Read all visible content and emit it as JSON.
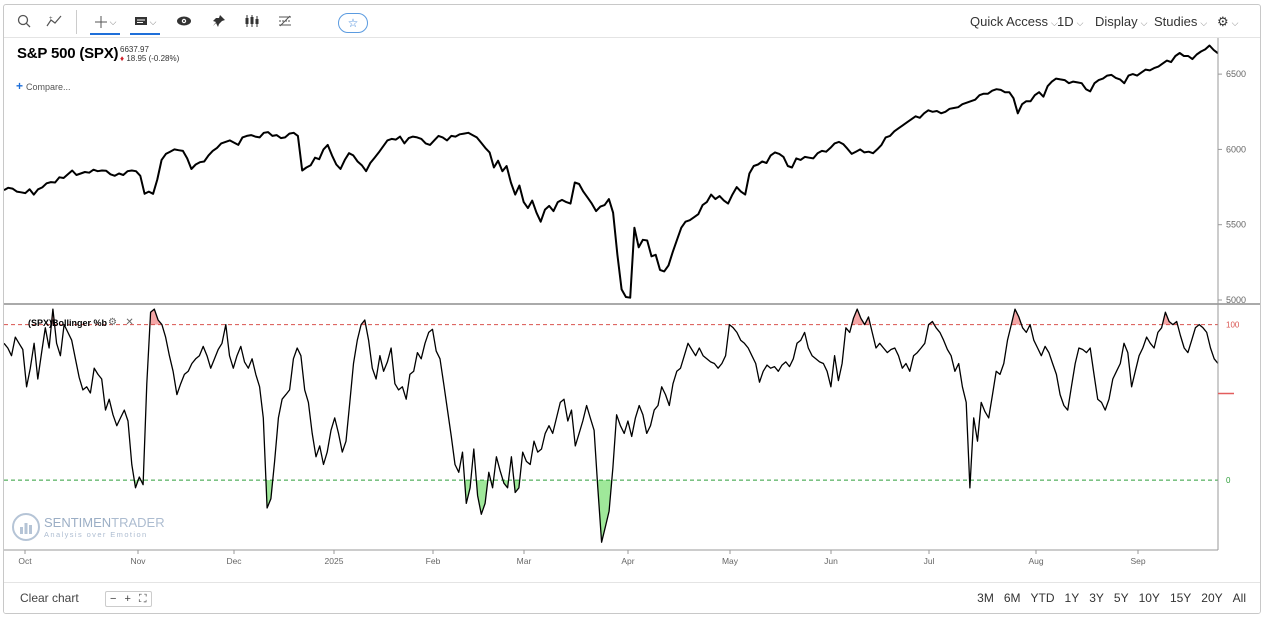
{
  "toolbar": {
    "quick_access": "Quick Access",
    "interval": "1D",
    "display": "Display",
    "studies": "Studies"
  },
  "header": {
    "title": "S&P 500 (SPX)",
    "price": "6637.97",
    "change": "18.95 (-0.28%)",
    "compare": "Compare..."
  },
  "indicator": {
    "label": "(SPX)Bollinger %b"
  },
  "watermark": {
    "brand_a": "SENTIMEN",
    "brand_b": "TRADER",
    "tagline": "Analysis over Emotion"
  },
  "bottom": {
    "clear_chart": "Clear chart",
    "ranges": [
      "3M",
      "6M",
      "YTD",
      "1Y",
      "3Y",
      "5Y",
      "10Y",
      "15Y",
      "20Y",
      "All"
    ]
  },
  "colors": {
    "price_line": "#000000",
    "upper_band": "#d9534f",
    "lower_band": "#2e9e3a",
    "upper_fill": "#f4a6a6",
    "lower_fill": "#9fe89a"
  },
  "chart_data": [
    {
      "type": "line",
      "title": "S&P 500 (SPX)",
      "x_ticks": [
        "Oct",
        "Nov",
        "Dec",
        "2025",
        "Feb",
        "Mar",
        "Apr",
        "May",
        "Jun",
        "Jul",
        "Aug",
        "Sep"
      ],
      "y_ticks": [
        5000,
        5500,
        6000,
        6500
      ],
      "ylim": [
        4980,
        6700
      ],
      "series": [
        {
          "name": "SPX",
          "values": [
            5730,
            5745,
            5740,
            5720,
            5715,
            5710,
            5735,
            5700,
            5735,
            5748,
            5775,
            5783,
            5780,
            5815,
            5810,
            5835,
            5860,
            5830,
            5840,
            5850,
            5845,
            5865,
            5855,
            5860,
            5858,
            5835,
            5825,
            5840,
            5830,
            5855,
            5860,
            5855,
            5825,
            5705,
            5720,
            5705,
            5800,
            5930,
            5970,
            5985,
            6000,
            5995,
            5990,
            5940,
            5870,
            5900,
            5915,
            5920,
            5960,
            5990,
            6010,
            6040,
            6050,
            6060,
            6045,
            6030,
            6080,
            6090,
            6095,
            6085,
            6080,
            6110,
            6115,
            6090,
            6095,
            6075,
            6080,
            6105,
            6110,
            6090,
            5860,
            5880,
            5895,
            5945,
            5935,
            6000,
            6030,
            5960,
            5900,
            5870,
            5930,
            5975,
            5960,
            5920,
            5895,
            5855,
            5910,
            5945,
            5980,
            6020,
            6060,
            6070,
            6065,
            6085,
            6040,
            6075,
            6085,
            6080,
            6070,
            6040,
            6030,
            6060,
            6090,
            6080,
            6060,
            6090,
            6085,
            6100,
            6105,
            6110,
            6095,
            6080,
            6045,
            6010,
            5980,
            5880,
            5925,
            5855,
            5890,
            5780,
            5700,
            5760,
            5650,
            5610,
            5660,
            5580,
            5520,
            5600,
            5625,
            5590,
            5650,
            5665,
            5650,
            5640,
            5780,
            5770,
            5720,
            5680,
            5640,
            5590,
            5620,
            5630,
            5670,
            5580,
            5300,
            5070,
            5020,
            5015,
            5480,
            5350,
            5400,
            5395,
            5290,
            5300,
            5200,
            5190,
            5230,
            5320,
            5400,
            5480,
            5520,
            5530,
            5550,
            5570,
            5630,
            5650,
            5700,
            5670,
            5690,
            5660,
            5640,
            5700,
            5750,
            5720,
            5700,
            5840,
            5890,
            5900,
            5920,
            5910,
            5960,
            5980,
            5970,
            5950,
            5890,
            5880,
            5940,
            5930,
            5950,
            5945,
            5940,
            5975,
            5990,
            5985,
            6010,
            6040,
            6050,
            6035,
            6005,
            5970,
            5985,
            6000,
            5980,
            5985,
            5975,
            6000,
            6030,
            6080,
            6090,
            6120,
            6140,
            6160,
            6180,
            6200,
            6220,
            6210,
            6240,
            6260,
            6250,
            6255,
            6240,
            6250,
            6270,
            6275,
            6280,
            6300,
            6310,
            6320,
            6330,
            6360,
            6370,
            6370,
            6390,
            6400,
            6395,
            6380,
            6380,
            6340,
            6240,
            6300,
            6320,
            6320,
            6360,
            6380,
            6350,
            6420,
            6450,
            6470,
            6465,
            6460,
            6440,
            6450,
            6445,
            6440,
            6400,
            6385,
            6440,
            6460,
            6470,
            6490,
            6495,
            6475,
            6465,
            6440,
            6490,
            6500,
            6490,
            6510,
            6530,
            6525,
            6540,
            6550,
            6570,
            6590,
            6580,
            6620,
            6640,
            6620,
            6620,
            6600,
            6630,
            6650,
            6664,
            6690,
            6660,
            6638
          ]
        }
      ]
    },
    {
      "type": "line",
      "title": "(SPX)Bollinger %b",
      "y_ticks": [
        0,
        100
      ],
      "ylim": [
        -45,
        112
      ],
      "series": [
        {
          "name": "(SPX)Bollinger %b",
          "values": [
            88,
            85,
            80,
            92,
            88,
            84,
            60,
            72,
            88,
            65,
            82,
            98,
            85,
            110,
            88,
            80,
            100,
            95,
            90,
            78,
            66,
            58,
            60,
            56,
            72,
            68,
            65,
            45,
            52,
            42,
            35,
            40,
            45,
            38,
            10,
            -5,
            2,
            -3,
            62,
            108,
            110,
            103,
            100,
            92,
            80,
            70,
            55,
            62,
            68,
            70,
            75,
            78,
            80,
            86,
            80,
            72,
            78,
            84,
            88,
            100,
            80,
            72,
            80,
            86,
            76,
            72,
            78,
            68,
            60,
            40,
            -18,
            -12,
            12,
            40,
            52,
            55,
            58,
            78,
            85,
            80,
            58,
            50,
            30,
            15,
            22,
            10,
            18,
            32,
            40,
            30,
            18,
            25,
            50,
            75,
            90,
            100,
            103,
            90,
            72,
            65,
            80,
            70,
            76,
            85,
            62,
            58,
            60,
            52,
            68,
            70,
            82,
            78,
            88,
            95,
            97,
            83,
            78,
            62,
            45,
            28,
            10,
            5,
            18,
            -15,
            -5,
            20,
            -10,
            -22,
            -15,
            5,
            -5,
            15,
            6,
            -2,
            -5,
            15,
            -8,
            -5,
            18,
            12,
            10,
            25,
            18,
            20,
            30,
            35,
            30,
            40,
            50,
            52,
            38,
            45,
            22,
            30,
            38,
            48,
            40,
            32,
            -5,
            -40,
            -30,
            -20,
            8,
            42,
            35,
            30,
            38,
            28,
            40,
            48,
            42,
            30,
            35,
            45,
            48,
            60,
            55,
            48,
            62,
            70,
            72,
            80,
            88,
            84,
            80,
            85,
            80,
            78,
            76,
            75,
            72,
            75,
            80,
            100,
            98,
            95,
            90,
            88,
            85,
            80,
            75,
            63,
            70,
            74,
            72,
            73,
            70,
            74,
            76,
            73,
            78,
            88,
            90,
            95,
            85,
            80,
            78,
            76,
            75,
            70,
            60,
            80,
            64,
            75,
            98,
            95,
            104,
            110,
            104,
            100,
            105,
            95,
            85,
            88,
            85,
            82,
            84,
            85,
            80,
            72,
            75,
            70,
            80,
            82,
            85,
            88,
            100,
            102,
            98,
            95,
            90,
            84,
            80,
            70,
            75,
            60,
            50,
            -5,
            40,
            25,
            50,
            44,
            40,
            55,
            70,
            68,
            75,
            90,
            100,
            110,
            105,
            98,
            95,
            100,
            90,
            85,
            80,
            86,
            82,
            75,
            68,
            55,
            48,
            45,
            60,
            75,
            85,
            84,
            82,
            85,
            68,
            52,
            50,
            45,
            52,
            65,
            70,
            75,
            88,
            82,
            60,
            70,
            80,
            85,
            92,
            88,
            85,
            95,
            98,
            108,
            102,
            100,
            102,
            93,
            85,
            82,
            90,
            98,
            100,
            98,
            95,
            85,
            78,
            75
          ]
        }
      ]
    }
  ]
}
